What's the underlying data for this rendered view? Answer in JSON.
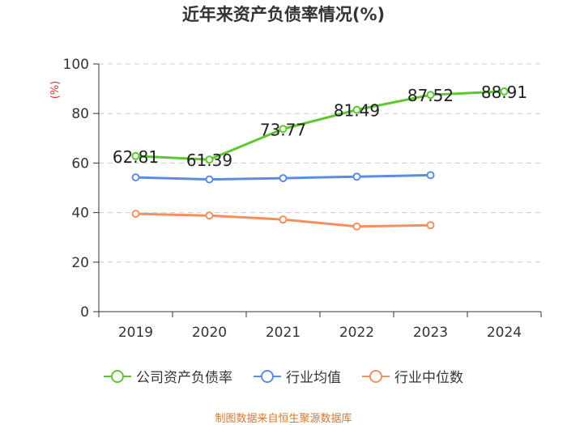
{
  "colors": {
    "series": [
      "#5dc630",
      "#5b8de0",
      "#f4905e"
    ],
    "source": "#d17a2f",
    "ylabel": "#e0322c"
  },
  "source_text": "制图数据来自恒生聚源数据库",
  "chart_data": {
    "type": "line",
    "title": "近年来资产负债率情况(%)",
    "ylabel": "(%)",
    "xlabel": "",
    "ylim": [
      0,
      100
    ],
    "yticks": [
      0,
      20,
      40,
      60,
      80,
      100
    ],
    "categories": [
      "2019",
      "2020",
      "2021",
      "2022",
      "2023",
      "2024"
    ],
    "grid": true,
    "legend_position": "bottom",
    "series": [
      {
        "name": "公司资产负债率",
        "values": [
          62.81,
          61.39,
          73.77,
          81.49,
          87.52,
          88.91
        ],
        "labels": [
          "62.81",
          "61.39",
          "73.77",
          "81.49",
          "87.52",
          "88.91"
        ]
      },
      {
        "name": "行业均值",
        "values": [
          54.2,
          53.4,
          53.9,
          54.5,
          55.1,
          null
        ]
      },
      {
        "name": "行业中位数",
        "values": [
          39.5,
          38.8,
          37.2,
          34.4,
          34.9,
          null
        ]
      }
    ]
  }
}
